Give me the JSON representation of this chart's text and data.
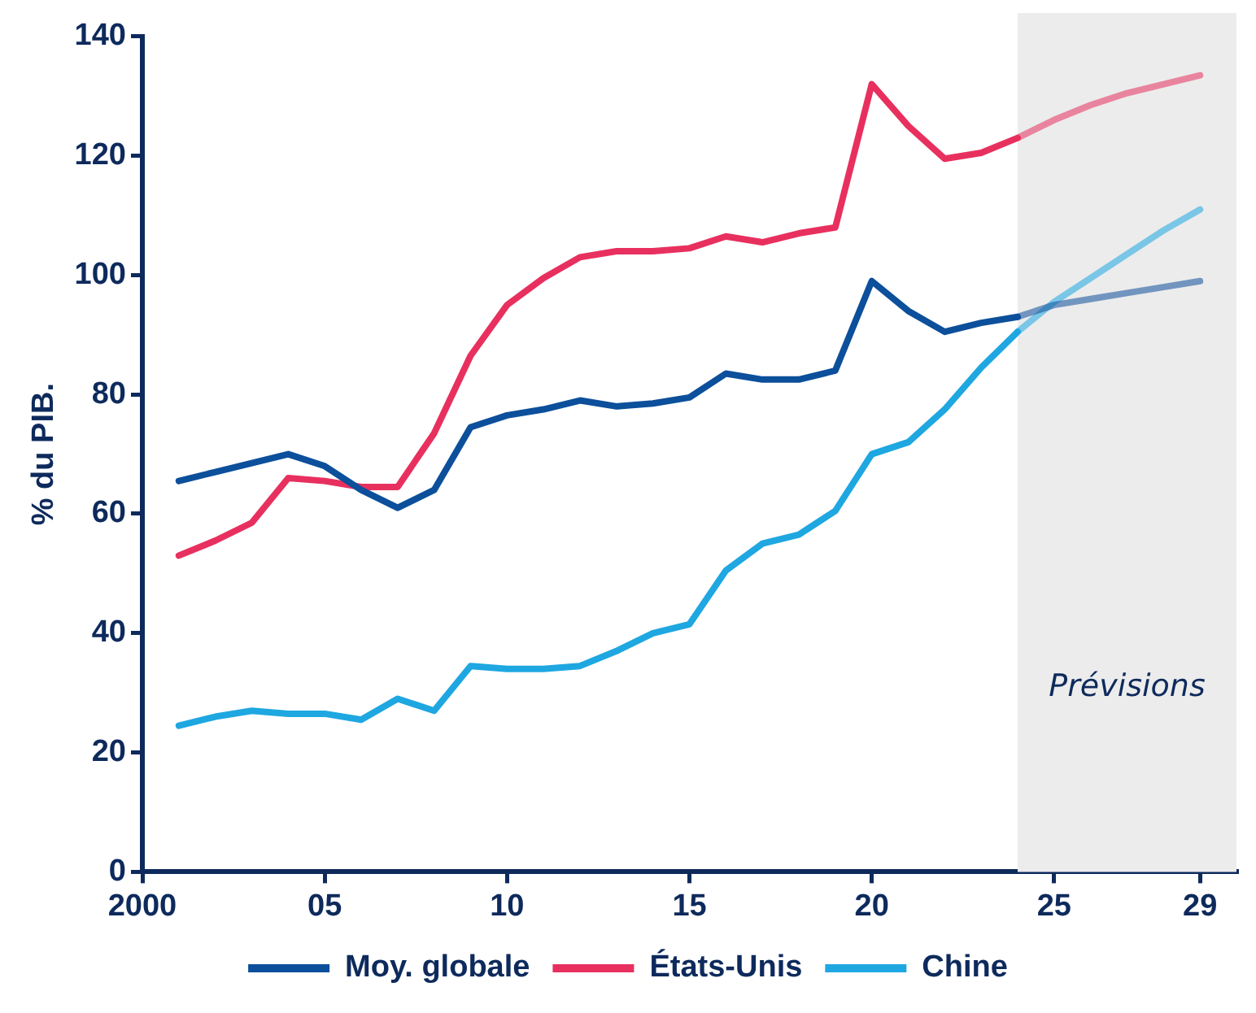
{
  "chart_data": {
    "type": "line",
    "ylabel": "% du PIB.",
    "x": [
      2001,
      2002,
      2003,
      2004,
      2005,
      2006,
      2007,
      2008,
      2009,
      2010,
      2011,
      2012,
      2013,
      2014,
      2015,
      2016,
      2017,
      2018,
      2019,
      2020,
      2021,
      2022,
      2023,
      2024,
      2025,
      2026,
      2027,
      2028,
      2029
    ],
    "series": [
      {
        "name": "Moy. globale",
        "color": "#0c4f9b",
        "values": [
          65.5,
          67,
          68.5,
          70,
          68,
          64,
          61,
          64,
          74.5,
          76.5,
          77.5,
          79,
          78,
          78.5,
          79.5,
          83.5,
          82.5,
          82.5,
          84,
          99,
          94,
          90.5,
          92,
          93,
          95,
          96,
          97,
          98,
          99
        ]
      },
      {
        "name": "États-Unis",
        "color": "#e8305f",
        "values": [
          53,
          55.5,
          58.5,
          66,
          65.5,
          64.5,
          64.5,
          73.5,
          86.5,
          95,
          99.5,
          103,
          104,
          104,
          104.5,
          106.5,
          105.5,
          107,
          108,
          132,
          125,
          119.5,
          120.5,
          123,
          126,
          128.5,
          130.5,
          132,
          133.5
        ]
      },
      {
        "name": "Chine",
        "color": "#1ea7e1",
        "values": [
          24.5,
          26,
          27,
          26.5,
          26.5,
          25.5,
          29,
          27,
          34.5,
          34,
          34,
          34.5,
          37,
          40,
          41.5,
          50.5,
          55,
          56.5,
          60.5,
          70,
          72,
          77.5,
          84.5,
          90.5,
          95.5,
          99.5,
          103.5,
          107.5,
          111
        ]
      }
    ],
    "xlim": [
      2000,
      2030
    ],
    "xticks": [
      2000,
      {
        "value": 2005,
        "label": "05"
      },
      {
        "value": 2010,
        "label": "10"
      },
      {
        "value": 2015,
        "label": "15"
      },
      {
        "value": 2020,
        "label": "20"
      },
      {
        "value": 2025,
        "label": "25"
      },
      {
        "value": 2029,
        "label": "29"
      }
    ],
    "ylim": [
      0,
      140
    ],
    "yticks": [
      0,
      20,
      40,
      60,
      80,
      100,
      120,
      140
    ],
    "bands": [
      {
        "axis": "x",
        "from": 2024,
        "to": 2030,
        "label": "Prévisions",
        "color": "#ececec"
      }
    ],
    "grid": false,
    "legend": "bottom",
    "marker": "none",
    "line_style": "solid"
  }
}
